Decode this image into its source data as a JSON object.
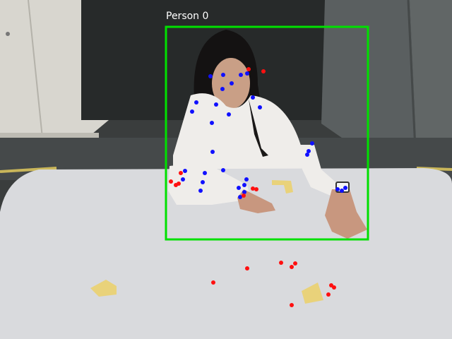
{
  "detection": {
    "label": "Person 0",
    "box_color": "#00e000"
  },
  "keypoint_colors": {
    "inside": "#1010ff",
    "outside": "#ff1010"
  }
}
